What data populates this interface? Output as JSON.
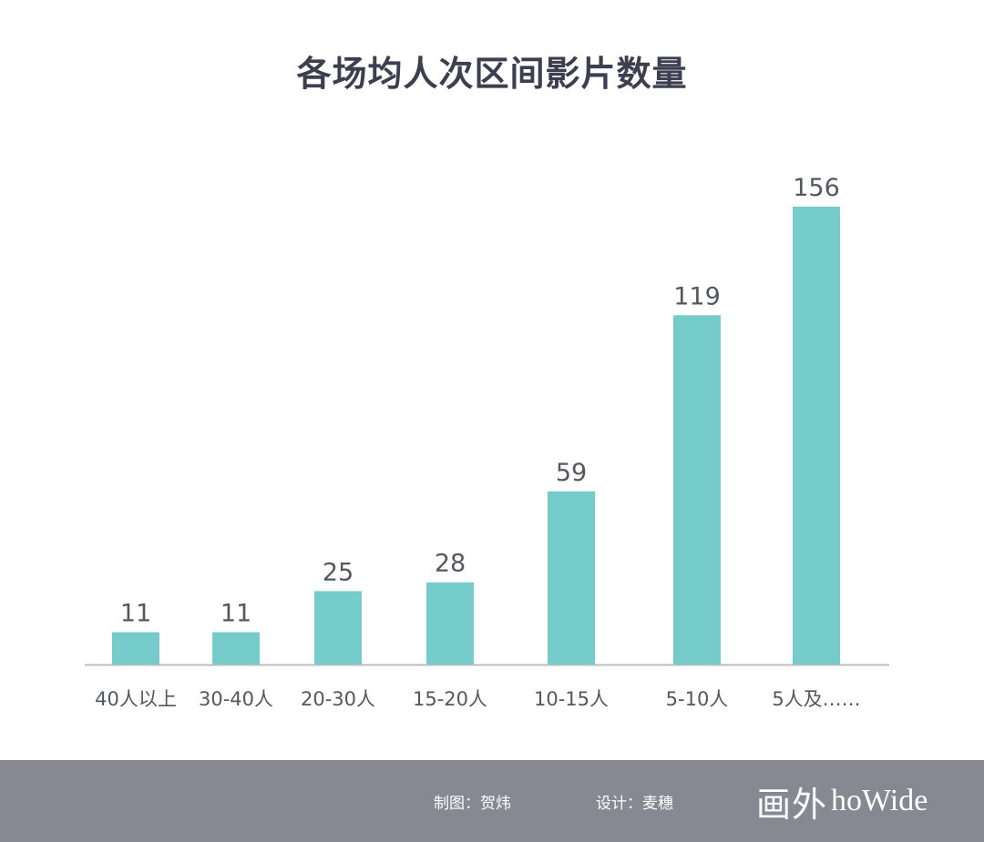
{
  "chart_data": {
    "type": "bar",
    "title": "各场均人次区间影片数量",
    "categories": [
      "40人以上",
      "30-40人",
      "20-30人",
      "15-20人",
      "10-15人",
      "5-10人",
      "5人及……"
    ],
    "values": [
      11,
      11,
      25,
      28,
      59,
      119,
      156
    ],
    "ylim": [
      0,
      156
    ],
    "grid": false,
    "bar_color": "#76cbcb",
    "axis_color": "#bdbdbd"
  },
  "footer": {
    "chart_credit": "制图：贺炜",
    "design_credit": "设计：麦穗",
    "logo_cn": "画外",
    "logo_en": "hoWide",
    "background": "#888893"
  }
}
